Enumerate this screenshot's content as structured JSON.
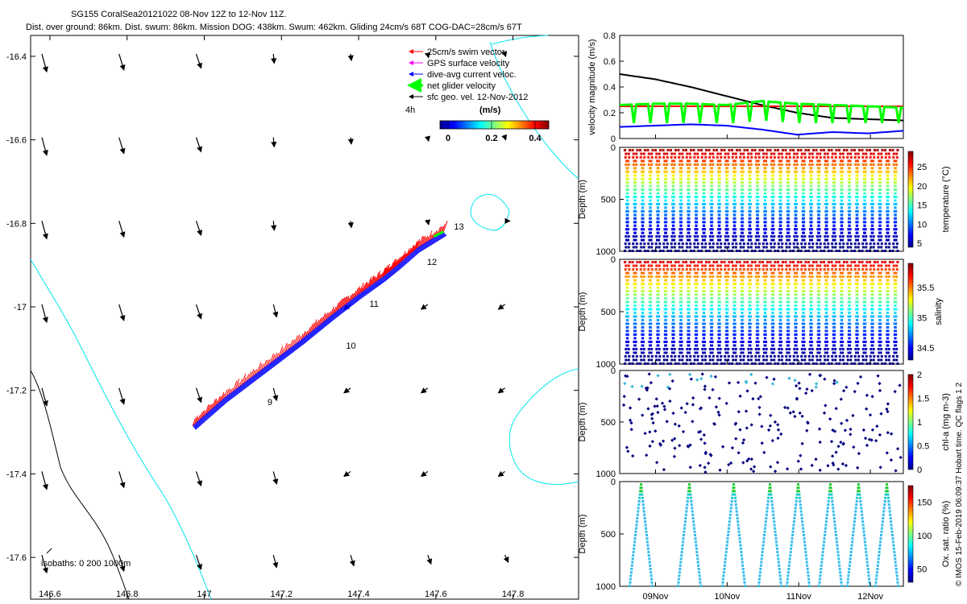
{
  "title": {
    "line1": "SG155 CoralSea20121022 08-Nov 12Z to 12-Nov 11Z.",
    "line2": "Dist. over ground: 86km. Dist. swum: 86km. Mission DOG: 438km. Swum: 462km. Gliding 24cm/s 68T COG-DAC=28cm/s 67T"
  },
  "legend": {
    "items": [
      {
        "label": "25cm/s swim vector",
        "color": "#ff0000"
      },
      {
        "label": "GPS surface velocity",
        "color": "#ff00ff"
      },
      {
        "label": "dive-avg current veloc.",
        "color": "#0000ff"
      },
      {
        "label": "net glider velocity",
        "color": "#00ff00"
      },
      {
        "label": "sfc geo. vel. 12-Nov-2012",
        "color": "#000000"
      }
    ],
    "scale_label": "4h",
    "colorbar_title": "(m/s)",
    "colorbar_ticks": [
      "0",
      "0.2",
      "0.4"
    ]
  },
  "map": {
    "isobath_label": "isobaths: 0   200  1000m",
    "day_labels": [
      "9",
      "10",
      "11",
      "12",
      "13"
    ]
  },
  "right_panels": {
    "time_ticks": [
      "09Nov",
      "10Nov",
      "11Nov",
      "12Nov"
    ],
    "watermark": "© IMOS 15-Feb-2019 06:09:37 Hobart time. QC flags 1  2"
  },
  "chart_data": [
    {
      "type": "scatter",
      "name": "track map",
      "xlim": [
        146.55,
        147.97
      ],
      "ylim": [
        -17.7,
        -16.35
      ],
      "xticks": [
        "146.6",
        "146.8",
        "147",
        "147.2",
        "147.4",
        "147.6",
        "147.8"
      ],
      "yticks": [
        "-16.4",
        "-16.6",
        "-16.8",
        "-17",
        "-17.2",
        "-17.4",
        "-17.6"
      ],
      "track": [
        [
          146.97,
          -17.285
        ],
        [
          147.05,
          -17.22
        ],
        [
          147.15,
          -17.15
        ],
        [
          147.25,
          -17.08
        ],
        [
          147.33,
          -17.02
        ],
        [
          147.4,
          -16.97
        ],
        [
          147.46,
          -16.93
        ],
        [
          147.5,
          -16.9
        ],
        [
          147.55,
          -16.86
        ],
        [
          147.62,
          -16.82
        ]
      ]
    },
    {
      "type": "line",
      "ylabel": "velocity magnitude (m/s)",
      "ylim": [
        0,
        0.8
      ],
      "yticks": [
        "0",
        "0.2",
        "0.4",
        "0.6",
        "0.8"
      ],
      "series": [
        {
          "color": "#000000",
          "values": [
            0.5,
            0.46,
            0.4,
            0.33,
            0.26,
            0.2,
            0.16,
            0.15,
            0.14
          ]
        },
        {
          "color": "#ff0000",
          "values": [
            0.25,
            0.25,
            0.25,
            0.25,
            0.25,
            0.25,
            0.25,
            0.25,
            0.25
          ]
        },
        {
          "color": "#00ff00",
          "values": [
            0.26,
            0.27,
            0.27,
            0.26,
            0.29,
            0.27,
            0.26,
            0.25,
            0.24
          ]
        },
        {
          "color": "#0000ff",
          "values": [
            0.09,
            0.1,
            0.11,
            0.1,
            0.07,
            0.03,
            0.05,
            0.04,
            0.06
          ]
        }
      ]
    },
    {
      "type": "scatter",
      "ylabel": "Depth (m)",
      "colorbar_label": "temperature (°C)",
      "yticks": [
        "0",
        "500",
        "1000"
      ],
      "cticks": [
        "5",
        "10",
        "15",
        "20",
        "25"
      ],
      "clim": [
        4,
        29
      ],
      "dives": 36
    },
    {
      "type": "scatter",
      "ylabel": "Depth (m)",
      "colorbar_label": "salinity",
      "yticks": [
        "0",
        "500",
        "1000"
      ],
      "cticks": [
        "34.5",
        "35",
        "35.5"
      ],
      "clim": [
        34.3,
        35.9
      ],
      "dives": 36
    },
    {
      "type": "scatter",
      "ylabel": "Depth (m)",
      "colorbar_label": "chl-a (mg m-3)",
      "yticks": [
        "0",
        "500",
        "1000"
      ],
      "cticks": [
        "0",
        "0.5",
        "1",
        "1.5",
        "2"
      ],
      "clim": [
        0,
        2
      ]
    },
    {
      "type": "scatter",
      "ylabel": "Depth (m)",
      "colorbar_label": "Ox. sat. ratio (%)",
      "yticks": [
        "0",
        "500",
        "1000"
      ],
      "cticks": [
        "50",
        "100",
        "150"
      ],
      "clim": [
        30,
        175
      ]
    }
  ]
}
